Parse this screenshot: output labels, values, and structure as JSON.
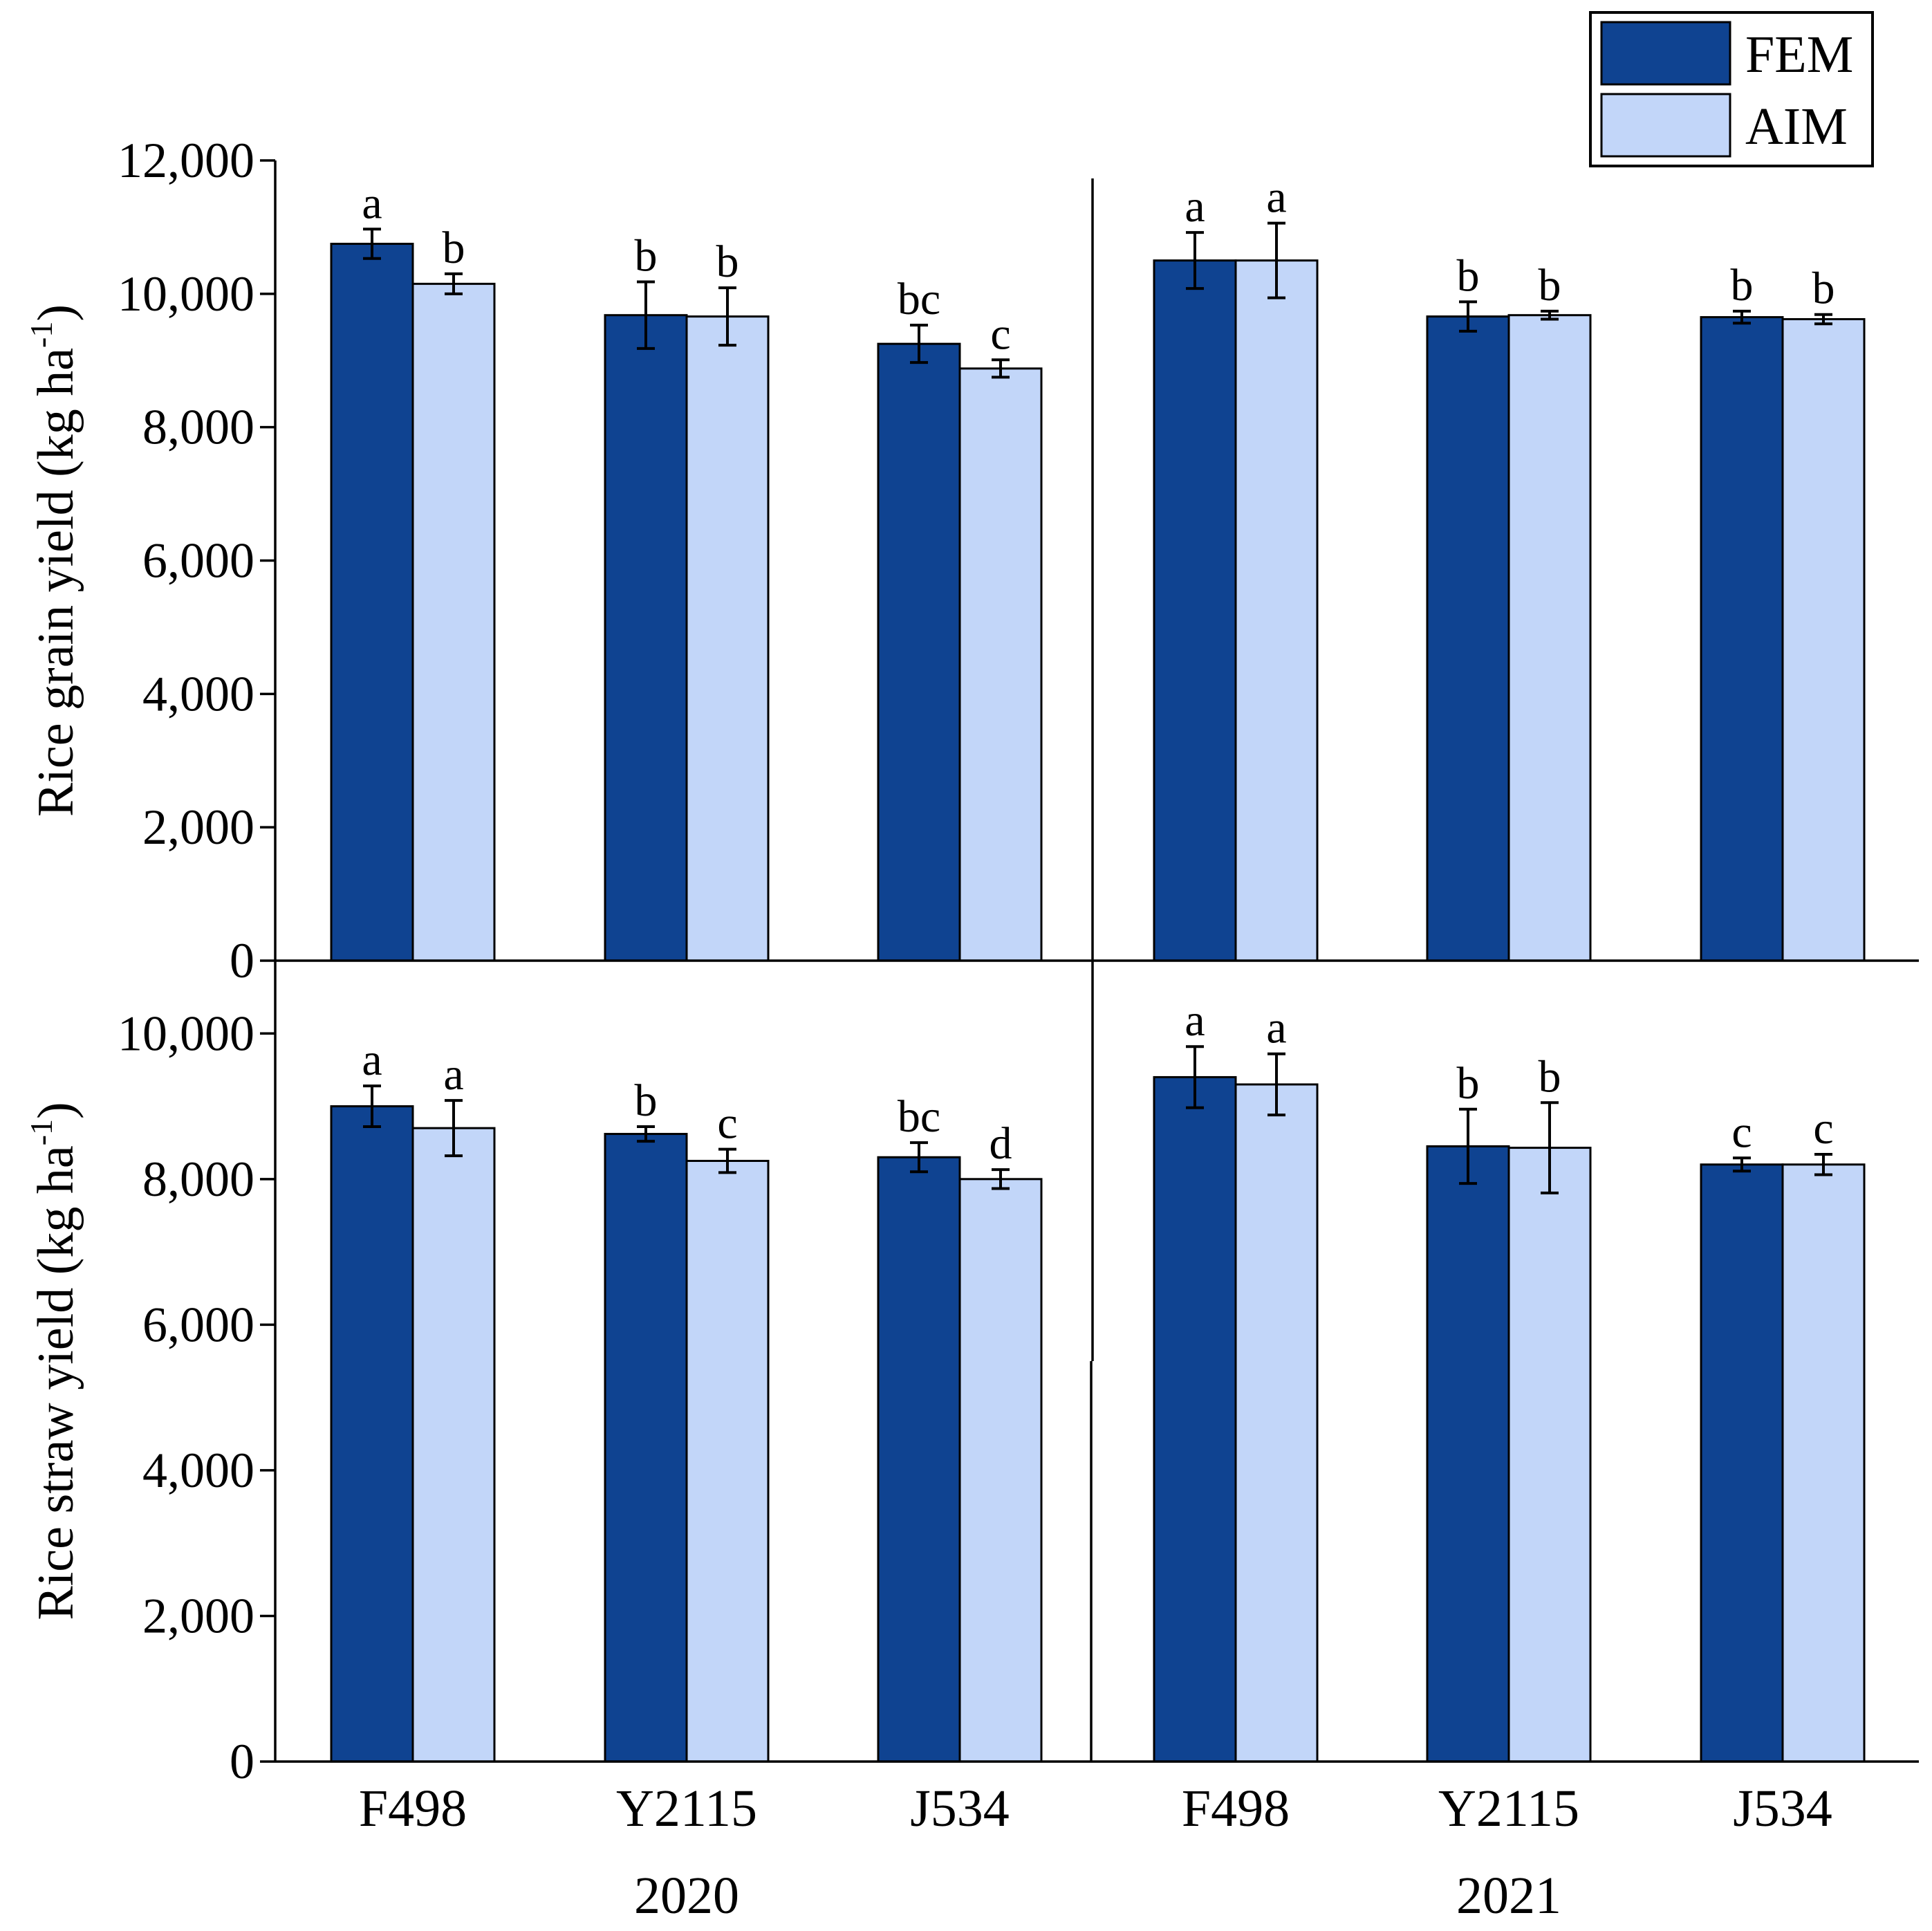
{
  "chart_data": {
    "type": "bar",
    "groups": [
      {
        "label": "2020",
        "categories": [
          "F498",
          "Y2115",
          "J534"
        ]
      },
      {
        "label": "2021",
        "categories": [
          "F498",
          "Y2115",
          "J534"
        ]
      }
    ],
    "series": [
      {
        "name": "FEM",
        "color": "#0f4391"
      },
      {
        "name": "AIM",
        "color": "#c2d6f9"
      }
    ],
    "legend": {
      "position": "top-right",
      "entries": [
        "FEM",
        "AIM"
      ]
    },
    "panels": [
      {
        "id": "grain",
        "ylabel_main": "Rice grain yield (kg ha",
        "ylabel_sup": "-1",
        "ylabel_close": ")",
        "ylim": [
          0,
          12000
        ],
        "yticks": [
          0,
          2000,
          4000,
          6000,
          8000,
          10000,
          12000
        ],
        "ytick_labels": [
          "0",
          "2,000",
          "4,000",
          "6,000",
          "8,000",
          "10,000",
          "12,000"
        ],
        "bars": [
          {
            "year": "2020",
            "category": "F498",
            "series": "FEM",
            "value": 10750,
            "error": 220,
            "sig": "a"
          },
          {
            "year": "2020",
            "category": "F498",
            "series": "AIM",
            "value": 10150,
            "error": 150,
            "sig": "b"
          },
          {
            "year": "2020",
            "category": "Y2115",
            "series": "FEM",
            "value": 9680,
            "error": 500,
            "sig": "b"
          },
          {
            "year": "2020",
            "category": "Y2115",
            "series": "AIM",
            "value": 9660,
            "error": 430,
            "sig": "b"
          },
          {
            "year": "2020",
            "category": "J534",
            "series": "FEM",
            "value": 9250,
            "error": 280,
            "sig": "bc"
          },
          {
            "year": "2020",
            "category": "J534",
            "series": "AIM",
            "value": 8880,
            "error": 130,
            "sig": "c"
          },
          {
            "year": "2021",
            "category": "F498",
            "series": "FEM",
            "value": 10500,
            "error": 420,
            "sig": "a"
          },
          {
            "year": "2021",
            "category": "F498",
            "series": "AIM",
            "value": 10500,
            "error": 560,
            "sig": "a"
          },
          {
            "year": "2021",
            "category": "Y2115",
            "series": "FEM",
            "value": 9660,
            "error": 220,
            "sig": "b"
          },
          {
            "year": "2021",
            "category": "Y2115",
            "series": "AIM",
            "value": 9680,
            "error": 60,
            "sig": "b"
          },
          {
            "year": "2021",
            "category": "J534",
            "series": "FEM",
            "value": 9650,
            "error": 90,
            "sig": "b"
          },
          {
            "year": "2021",
            "category": "J534",
            "series": "AIM",
            "value": 9620,
            "error": 70,
            "sig": "b"
          }
        ]
      },
      {
        "id": "straw",
        "ylabel_main": "Rice straw yield (kg ha",
        "ylabel_sup": "-1",
        "ylabel_close": ")",
        "ylim": [
          0,
          11000
        ],
        "yticks": [
          0,
          2000,
          4000,
          6000,
          8000,
          10000
        ],
        "ytick_labels": [
          "0",
          "2,000",
          "4,000",
          "6,000",
          "8,000",
          "10,000"
        ],
        "bars": [
          {
            "year": "2020",
            "category": "F498",
            "series": "FEM",
            "value": 9000,
            "error": 280,
            "sig": "a"
          },
          {
            "year": "2020",
            "category": "F498",
            "series": "AIM",
            "value": 8700,
            "error": 380,
            "sig": "a"
          },
          {
            "year": "2020",
            "category": "Y2115",
            "series": "FEM",
            "value": 8620,
            "error": 100,
            "sig": "b"
          },
          {
            "year": "2020",
            "category": "Y2115",
            "series": "AIM",
            "value": 8250,
            "error": 160,
            "sig": "c"
          },
          {
            "year": "2020",
            "category": "J534",
            "series": "FEM",
            "value": 8300,
            "error": 200,
            "sig": "bc"
          },
          {
            "year": "2020",
            "category": "J534",
            "series": "AIM",
            "value": 8000,
            "error": 130,
            "sig": "d"
          },
          {
            "year": "2021",
            "category": "F498",
            "series": "FEM",
            "value": 9400,
            "error": 420,
            "sig": "a"
          },
          {
            "year": "2021",
            "category": "F498",
            "series": "AIM",
            "value": 9300,
            "error": 420,
            "sig": "a"
          },
          {
            "year": "2021",
            "category": "Y2115",
            "series": "FEM",
            "value": 8450,
            "error": 510,
            "sig": "b"
          },
          {
            "year": "2021",
            "category": "Y2115",
            "series": "AIM",
            "value": 8430,
            "error": 620,
            "sig": "b"
          },
          {
            "year": "2021",
            "category": "J534",
            "series": "FEM",
            "value": 8200,
            "error": 90,
            "sig": "c"
          },
          {
            "year": "2021",
            "category": "J534",
            "series": "AIM",
            "value": 8200,
            "error": 140,
            "sig": "c"
          }
        ]
      }
    ]
  }
}
